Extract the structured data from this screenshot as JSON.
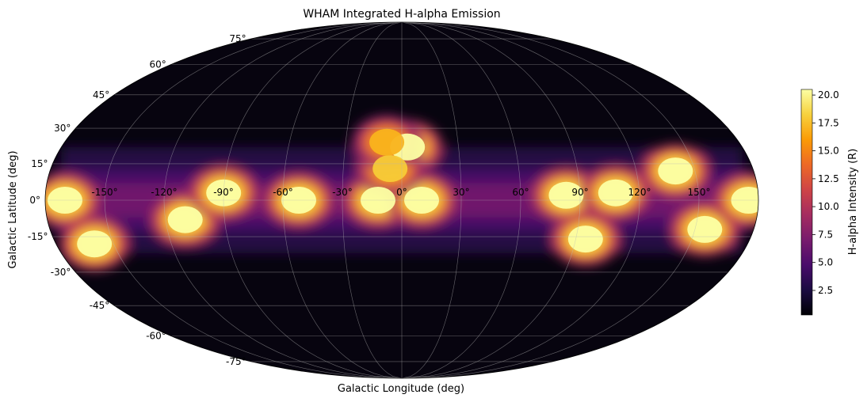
{
  "chart_data": {
    "type": "heatmap",
    "projection": "mollweide",
    "title": "WHAM Integrated H-alpha Emission",
    "xlabel": "Galactic Longitude (deg)",
    "ylabel": "Galactic Latitude (deg)",
    "x_ticks": [
      "-150°",
      "-120°",
      "-90°",
      "-60°",
      "-30°",
      "0°",
      "30°",
      "60°",
      "90°",
      "120°",
      "150°"
    ],
    "y_ticks": [
      "75°",
      "60°",
      "45°",
      "30°",
      "15°",
      "0°",
      "-15°",
      "-30°",
      "-45°",
      "-60°",
      "-75°"
    ],
    "x_tick_values": [
      -150,
      -120,
      -90,
      -60,
      -30,
      0,
      30,
      60,
      90,
      120,
      150
    ],
    "y_tick_values": [
      75,
      60,
      45,
      30,
      15,
      0,
      -15,
      -30,
      -45,
      -60,
      -75
    ],
    "grid": true,
    "colormap": "inferno",
    "colormap_stops": [
      "#000004",
      "#1b0c41",
      "#4a0c6b",
      "#781c6d",
      "#a52c60",
      "#cf4446",
      "#ed6925",
      "#fb9b06",
      "#f7d13d",
      "#fcffa4"
    ],
    "colorbar": {
      "label": "H-alpha Intensity (R)",
      "ticks": [
        "2.5",
        "5.0",
        "7.5",
        "10.0",
        "12.5",
        "15.0",
        "17.5",
        "20.0"
      ],
      "tick_values": [
        2.5,
        5.0,
        7.5,
        10.0,
        12.5,
        15.0,
        17.5,
        20.0
      ],
      "vmin": 0.3,
      "vmax": 20.5,
      "placement": "right"
    },
    "bright_regions": [
      {
        "lon": -170,
        "lat": 0,
        "value": 20.5
      },
      {
        "lon": -160,
        "lat": -18,
        "value": 20.5
      },
      {
        "lon": -110,
        "lat": -8,
        "value": 20.5
      },
      {
        "lon": -90,
        "lat": 3,
        "value": 20.5
      },
      {
        "lon": -52,
        "lat": 0,
        "value": 20.5
      },
      {
        "lon": -12,
        "lat": 0,
        "value": 20.5
      },
      {
        "lon": 10,
        "lat": 0,
        "value": 20.5
      },
      {
        "lon": 3,
        "lat": 22,
        "value": 20.5
      },
      {
        "lon": -6,
        "lat": 13,
        "value": 18
      },
      {
        "lon": -8,
        "lat": 24,
        "value": 17
      },
      {
        "lon": 83,
        "lat": 2,
        "value": 20.5
      },
      {
        "lon": 108,
        "lat": 3,
        "value": 20.5
      },
      {
        "lon": 95,
        "lat": -16,
        "value": 20.5
      },
      {
        "lon": 155,
        "lat": -12,
        "value": 20.5
      },
      {
        "lon": 140,
        "lat": 12,
        "value": 20.5
      },
      {
        "lon": 175,
        "lat": 0,
        "value": 20.5
      }
    ]
  }
}
